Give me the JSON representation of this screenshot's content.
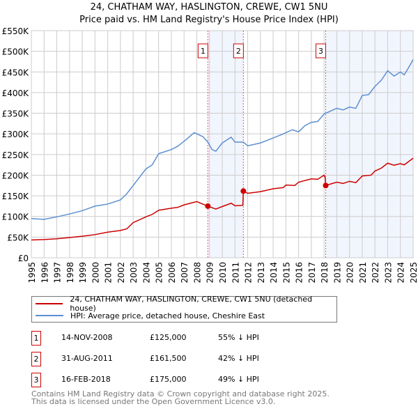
{
  "chart_data": {
    "type": "line",
    "title": "24, CHATHAM WAY, HASLINGTON, CREWE, CW1 5NU",
    "subtitle": "Price paid vs. HM Land Registry's House Price Index (HPI)",
    "xlim": [
      1995,
      2025
    ],
    "ylim": [
      0,
      550000
    ],
    "y_ticks": [
      0,
      50000,
      100000,
      150000,
      200000,
      250000,
      300000,
      350000,
      400000,
      450000,
      500000,
      550000
    ],
    "y_tick_labels": [
      "£0",
      "£50K",
      "£100K",
      "£150K",
      "£200K",
      "£250K",
      "£300K",
      "£350K",
      "£400K",
      "£450K",
      "£500K",
      "£550K"
    ],
    "x_tick_labels": [
      "1995",
      "1996",
      "1997",
      "1998",
      "1999",
      "2000",
      "2001",
      "2002",
      "2003",
      "2004",
      "2005",
      "2006",
      "2007",
      "2008",
      "2009",
      "2010",
      "2011",
      "2012",
      "2013",
      "2014",
      "2015",
      "2016",
      "2017",
      "2018",
      "2019",
      "2020",
      "2021",
      "2022",
      "2023",
      "2024",
      "2025"
    ],
    "grid": true,
    "shaded_ranges": [
      [
        2008.87,
        2011.66
      ],
      [
        2018.13,
        2025
      ]
    ],
    "series": [
      {
        "name": "24, CHATHAM WAY, HASLINGTON, CREWE, CW1 5NU (detached house)",
        "color": "#cc0000",
        "x": [
          1995,
          1996,
          1997,
          1998,
          1999,
          2000,
          2001,
          2002,
          2002.5,
          2003,
          2004,
          2004.5,
          2005,
          2006,
          2006.5,
          2007,
          2007.5,
          2008,
          2008.87,
          2009.5,
          2010,
          2010.7,
          2011,
          2011.62,
          2011.66,
          2012,
          2013,
          2014,
          2014.8,
          2015,
          2015.7,
          2016,
          2017,
          2017.5,
          2018,
          2018.1,
          2018.13,
          2019,
          2019.5,
          2020,
          2020.5,
          2021,
          2021.7,
          2022,
          2022.5,
          2023,
          2023.5,
          2024,
          2024.3,
          2025
        ],
        "y": [
          43000,
          44000,
          46000,
          49000,
          52000,
          56000,
          62000,
          66000,
          70000,
          85000,
          99000,
          105000,
          115000,
          120000,
          122000,
          128000,
          132000,
          136000,
          125000,
          118000,
          124000,
          132000,
          126000,
          127000,
          161500,
          156000,
          160000,
          167000,
          170000,
          176000,
          175000,
          183000,
          191000,
          190000,
          200000,
          193000,
          175000,
          183000,
          180000,
          185000,
          182000,
          198000,
          200000,
          210000,
          217000,
          229000,
          224000,
          228000,
          225000,
          241000
        ]
      },
      {
        "name": "HPI: Average price, detached house, Cheshire East",
        "color": "#5b8fd0",
        "x": [
          1995,
          1996,
          1997,
          1998,
          1999,
          2000,
          2001,
          2002,
          2002.5,
          2003,
          2003.5,
          2004,
          2004.5,
          2005,
          2006,
          2006.5,
          2007,
          2007.8,
          2008.5,
          2008.87,
          2009.2,
          2009.5,
          2010,
          2010.7,
          2011,
          2011.66,
          2012,
          2013,
          2014,
          2014.8,
          2015.5,
          2016,
          2016.5,
          2017,
          2017.5,
          2018,
          2018.5,
          2019,
          2019.5,
          2020,
          2020.5,
          2021,
          2021.5,
          2022,
          2022.5,
          2023,
          2023.5,
          2024,
          2024.3,
          2024.6,
          2025
        ],
        "y": [
          95000,
          93000,
          99000,
          106000,
          114000,
          125000,
          130000,
          140000,
          155000,
          175000,
          195000,
          215000,
          225000,
          252000,
          262000,
          270000,
          282000,
          303000,
          293000,
          280000,
          262000,
          258000,
          278000,
          292000,
          280000,
          280000,
          271000,
          278000,
          290000,
          300000,
          310000,
          305000,
          320000,
          328000,
          330000,
          348000,
          355000,
          362000,
          358000,
          365000,
          362000,
          393000,
          395000,
          415000,
          430000,
          453000,
          440000,
          450000,
          443000,
          458000,
          480000
        ]
      }
    ],
    "sales": [
      {
        "label": "1",
        "x": 2008.87,
        "y": 125000
      },
      {
        "label": "2",
        "x": 2011.66,
        "y": 161500
      },
      {
        "label": "3",
        "x": 2018.13,
        "y": 175000
      }
    ],
    "legend_placement": "below"
  },
  "transactions": [
    {
      "num": "1",
      "date": "14-NOV-2008",
      "price": "£125,000",
      "hpi": "55% ↓ HPI"
    },
    {
      "num": "2",
      "date": "31-AUG-2011",
      "price": "£161,500",
      "hpi": "42% ↓ HPI"
    },
    {
      "num": "3",
      "date": "16-FEB-2018",
      "price": "£175,000",
      "hpi": "49% ↓ HPI"
    }
  ],
  "footer": {
    "line1": "Contains HM Land Registry data © Crown copyright and database right 2025.",
    "line2": "This data is licensed under the Open Government Licence v3.0."
  }
}
